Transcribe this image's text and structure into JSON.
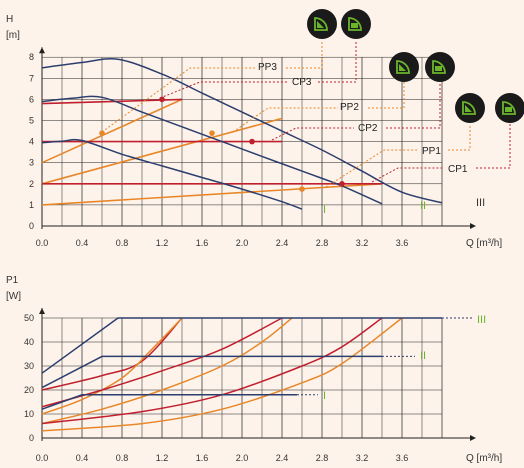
{
  "colors": {
    "background": "#fdf3ea",
    "grid": "#222222",
    "speed_curve": "#2c3e6e",
    "proportional": "#e8872a",
    "constant": "#c0202e",
    "speed_label": "#6bb52a",
    "mode_icon_bg": "#1a1a1a",
    "mode_icon_fg": "#6bb52a"
  },
  "chart_data": [
    {
      "type": "line",
      "ylabel": "H",
      "yunit": "[m]",
      "xlabel": "Q [m³/h]",
      "xlim": [
        0,
        4.0
      ],
      "ylim": [
        0,
        9
      ],
      "x_ticks": [
        "0.0",
        "0.4",
        "0.8",
        "1.2",
        "1.6",
        "2.0",
        "2.4",
        "2.8",
        "3.2",
        "3.6"
      ],
      "y_ticks": [
        "0",
        "1",
        "2",
        "3",
        "4",
        "5",
        "6",
        "7",
        "8"
      ],
      "grid": true,
      "speed_curves": [
        {
          "label": "III",
          "points": [
            [
              0,
              7.5
            ],
            [
              0.4,
              7.75
            ],
            [
              0.76,
              7.9
            ],
            [
              1.2,
              7.2
            ],
            [
              1.6,
              6.3
            ],
            [
              2.0,
              5.4
            ],
            [
              2.4,
              4.5
            ],
            [
              2.8,
              3.6
            ],
            [
              3.2,
              2.6
            ],
            [
              3.6,
              1.6
            ],
            [
              4.0,
              1.1
            ]
          ]
        },
        {
          "label": "II",
          "points": [
            [
              0,
              5.9
            ],
            [
              0.3,
              6.05
            ],
            [
              0.6,
              6.1
            ],
            [
              1.0,
              5.4
            ],
            [
              1.4,
              4.7
            ],
            [
              1.8,
              4.0
            ],
            [
              2.2,
              3.3
            ],
            [
              2.6,
              2.6
            ],
            [
              3.0,
              1.9
            ],
            [
              3.4,
              1.05
            ]
          ]
        },
        {
          "label": "I",
          "points": [
            [
              0,
              3.95
            ],
            [
              0.2,
              4.02
            ],
            [
              0.4,
              4.05
            ],
            [
              0.8,
              3.4
            ],
            [
              1.2,
              2.85
            ],
            [
              1.6,
              2.3
            ],
            [
              2.0,
              1.75
            ],
            [
              2.4,
              1.15
            ],
            [
              2.6,
              0.8
            ]
          ]
        }
      ],
      "control_curves": [
        {
          "label": "PP3",
          "style": "proportional",
          "points": [
            [
              0,
              3.0
            ],
            [
              1.4,
              6.0
            ]
          ]
        },
        {
          "label": "CP3",
          "style": "constant",
          "points": [
            [
              0,
              5.8
            ],
            [
              1.4,
              6.0
            ]
          ]
        },
        {
          "label": "PP2",
          "style": "proportional",
          "points": [
            [
              0,
              2.0
            ],
            [
              2.4,
              5.1
            ]
          ]
        },
        {
          "label": "CP2",
          "style": "constant",
          "points": [
            [
              0,
              4.0
            ],
            [
              2.4,
              4.0
            ]
          ]
        },
        {
          "label": "PP1",
          "style": "proportional",
          "points": [
            [
              0,
              1.0
            ],
            [
              3.4,
              2.0
            ]
          ]
        },
        {
          "label": "CP1",
          "style": "constant",
          "points": [
            [
              0,
              2.0
            ],
            [
              3.4,
              2.0
            ]
          ]
        }
      ],
      "markers": [
        {
          "for": "PP3",
          "x": 0.6,
          "y": 4.4
        },
        {
          "for": "CP3",
          "x": 1.2,
          "y": 6.0
        },
        {
          "for": "PP2",
          "x": 1.7,
          "y": 4.4
        },
        {
          "for": "CP2",
          "x": 2.1,
          "y": 4.0
        },
        {
          "for": "PP1",
          "x": 2.6,
          "y": 1.75
        },
        {
          "for": "CP1",
          "x": 3.0,
          "y": 2.0
        }
      ]
    },
    {
      "type": "line",
      "ylabel": "P1",
      "yunit": "[W]",
      "xlabel": "Q [m³/h]",
      "xlim": [
        0,
        4.0
      ],
      "ylim": [
        0,
        55
      ],
      "x_ticks": [
        "0.0",
        "0.4",
        "0.8",
        "1.2",
        "1.6",
        "2.0",
        "2.4",
        "2.8",
        "3.2",
        "3.6"
      ],
      "y_ticks": [
        "0",
        "10",
        "20",
        "30",
        "40",
        "50"
      ],
      "grid": true,
      "speed_lines": [
        {
          "label": "III",
          "points": [
            [
              0,
              27
            ],
            [
              0.76,
              50
            ],
            [
              4.0,
              50
            ]
          ]
        },
        {
          "label": "II",
          "points": [
            [
              0,
              21
            ],
            [
              0.6,
              34
            ],
            [
              3.4,
              34
            ]
          ]
        },
        {
          "label": "I",
          "points": [
            [
              0,
              12
            ],
            [
              0.4,
              18
            ],
            [
              2.55,
              18
            ]
          ]
        }
      ],
      "power_curves": [
        {
          "style": "constant",
          "points": [
            [
              0,
              20
            ],
            [
              0.6,
              26
            ],
            [
              1.0,
              32
            ],
            [
              1.4,
              50
            ]
          ]
        },
        {
          "style": "proportional",
          "points": [
            [
              0,
              10
            ],
            [
              0.4,
              16
            ],
            [
              0.8,
              25
            ],
            [
              1.1,
              37
            ],
            [
              1.4,
              50
            ]
          ]
        },
        {
          "style": "constant",
          "points": [
            [
              0,
              13
            ],
            [
              0.6,
              20
            ],
            [
              1.2,
              28
            ],
            [
              1.8,
              37
            ],
            [
              2.4,
              50
            ]
          ]
        },
        {
          "style": "proportional",
          "points": [
            [
              0,
              6
            ],
            [
              0.6,
              12
            ],
            [
              1.2,
              20
            ],
            [
              1.8,
              30
            ],
            [
              2.2,
              40
            ],
            [
              2.5,
              50
            ]
          ]
        },
        {
          "style": "constant",
          "points": [
            [
              0,
              6
            ],
            [
              1.0,
              11
            ],
            [
              1.8,
              18
            ],
            [
              2.6,
              30
            ],
            [
              3.0,
              38
            ],
            [
              3.4,
              50
            ]
          ]
        },
        {
          "style": "proportional",
          "points": [
            [
              0,
              3
            ],
            [
              1.0,
              6
            ],
            [
              1.8,
              12
            ],
            [
              2.6,
              23
            ],
            [
              3.0,
              31
            ],
            [
              3.6,
              50
            ]
          ]
        }
      ]
    }
  ],
  "mode_icons": [
    {
      "id": "pp3",
      "name": "proportional-pressure-icon"
    },
    {
      "id": "cp3",
      "name": "constant-pressure-icon"
    },
    {
      "id": "pp2",
      "name": "proportional-pressure-icon"
    },
    {
      "id": "cp2",
      "name": "constant-pressure-icon"
    },
    {
      "id": "pp1",
      "name": "proportional-pressure-icon"
    },
    {
      "id": "cp1",
      "name": "constant-pressure-icon"
    }
  ]
}
